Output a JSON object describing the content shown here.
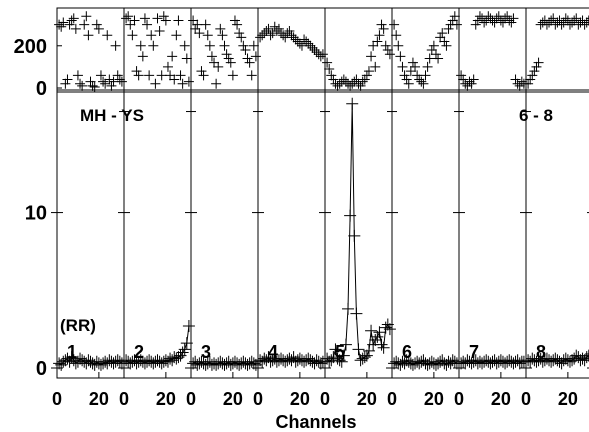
{
  "chart_data": {
    "type": "scatter",
    "title_left": "MH - YS",
    "title_right": "6 - 8",
    "xlabel": "Channels",
    "unit_label": "(RR)",
    "top_panel": {
      "ylim": [
        0,
        360
      ],
      "ytick_values": [
        0,
        200
      ],
      "ytick_labels": [
        "0",
        "200"
      ]
    },
    "main_panel": {
      "ylim": [
        0,
        17.5
      ],
      "ytick_values": [
        0,
        10
      ],
      "ytick_labels": [
        "0",
        "10"
      ]
    },
    "xlim": [
      0,
      32
    ],
    "xtick_values": [
      0,
      20
    ],
    "xtick_labels": [
      "0",
      "20"
    ],
    "grid": false,
    "legend": "none",
    "series": [
      {
        "label": "1",
        "x": [
          1,
          2,
          3,
          4,
          5,
          6,
          7,
          8,
          9,
          10,
          11,
          12,
          13,
          14,
          15,
          16,
          17,
          18,
          19,
          20,
          21,
          22,
          23,
          24,
          25,
          26,
          27,
          28,
          29,
          30,
          31
        ],
        "y": [
          0.3,
          0.2,
          0.4,
          0.5,
          0.6,
          0.4,
          0.7,
          0.5,
          0.3,
          0.4,
          0.6,
          0.5,
          0.4,
          0.3,
          0.5,
          0.4,
          0.3,
          0.2,
          0.4,
          0.3,
          0.2,
          0.3,
          0.4,
          0.3,
          0.5,
          0.4,
          0.3,
          0.4,
          0.5,
          0.4,
          0.3
        ],
        "top_x": [
          1,
          2,
          3,
          4,
          5,
          6,
          7,
          8,
          9,
          10,
          11,
          12,
          13,
          14,
          15,
          16,
          17,
          18,
          19,
          20,
          21,
          22,
          23,
          24,
          25,
          26,
          27,
          28,
          29,
          30,
          31
        ],
        "top_y": [
          300,
          290,
          310,
          20,
          40,
          300,
          320,
          330,
          280,
          60,
          20,
          10,
          300,
          340,
          250,
          30,
          10,
          5,
          300,
          280,
          60,
          30,
          20,
          250,
          40,
          10,
          30,
          200,
          60,
          40,
          30
        ]
      },
      {
        "label": "2",
        "x": [
          1,
          2,
          3,
          4,
          5,
          6,
          7,
          8,
          9,
          10,
          11,
          12,
          13,
          14,
          15,
          16,
          17,
          18,
          19,
          20,
          21,
          22,
          23,
          24,
          25,
          26,
          27,
          28,
          29,
          30,
          31
        ],
        "y": [
          0.5,
          0.4,
          0.3,
          0.4,
          0.5,
          0.3,
          0.4,
          0.5,
          0.4,
          0.3,
          0.4,
          0.5,
          0.4,
          0.3,
          0.4,
          0.5,
          0.4,
          0.3,
          0.4,
          0.5,
          0.4,
          0.6,
          0.5,
          0.7,
          0.6,
          0.7,
          0.8,
          1.0,
          1.2,
          1.6,
          2.7
        ],
        "top_x": [
          1,
          2,
          3,
          4,
          5,
          6,
          7,
          8,
          9,
          10,
          11,
          12,
          13,
          14,
          15,
          16,
          17,
          18,
          19,
          20,
          21,
          22,
          23,
          24,
          25,
          26,
          27,
          28,
          29,
          30,
          31
        ],
        "top_y": [
          330,
          340,
          300,
          250,
          320,
          80,
          60,
          200,
          150,
          330,
          300,
          60,
          250,
          200,
          20,
          330,
          270,
          60,
          340,
          320,
          100,
          60,
          150,
          40,
          250,
          320,
          60,
          20,
          200,
          140,
          30
        ]
      },
      {
        "label": "3",
        "x": [
          1,
          2,
          3,
          4,
          5,
          6,
          7,
          8,
          9,
          10,
          11,
          12,
          13,
          14,
          15,
          16,
          17,
          18,
          19,
          20,
          21,
          22,
          23,
          24,
          25,
          26,
          27,
          28,
          29,
          30,
          31
        ],
        "y": [
          0.3,
          0.4,
          0.2,
          0.3,
          0.4,
          0.3,
          0.2,
          0.3,
          0.4,
          0.2,
          0.3,
          0.2,
          0.3,
          0.4,
          0.3,
          0.2,
          0.3,
          0.4,
          0.2,
          0.3,
          0.4,
          0.3,
          0.2,
          0.3,
          0.4,
          0.3,
          0.2,
          0.3,
          0.4,
          0.3,
          0.2
        ],
        "top_x": [
          1,
          2,
          3,
          4,
          5,
          6,
          7,
          8,
          9,
          10,
          11,
          12,
          13,
          14,
          15,
          16,
          17,
          18,
          19,
          20,
          21,
          22,
          23,
          24,
          25,
          26,
          27,
          28,
          29,
          30,
          31
        ],
        "top_y": [
          320,
          280,
          300,
          260,
          80,
          60,
          300,
          250,
          200,
          150,
          120,
          20,
          100,
          280,
          250,
          200,
          160,
          140,
          120,
          60,
          320,
          300,
          260,
          240,
          200,
          180,
          140,
          120,
          60,
          200,
          150
        ]
      },
      {
        "label": "4",
        "x": [
          1,
          2,
          3,
          4,
          5,
          6,
          7,
          8,
          9,
          10,
          11,
          12,
          13,
          14,
          15,
          16,
          17,
          18,
          19,
          20,
          21,
          22,
          23,
          24,
          25,
          26,
          27,
          28,
          29,
          30,
          31
        ],
        "y": [
          0.5,
          0.4,
          0.6,
          0.5,
          0.7,
          0.4,
          0.5,
          0.6,
          0.4,
          0.5,
          0.6,
          0.5,
          0.4,
          0.5,
          0.6,
          0.5,
          0.7,
          0.4,
          0.5,
          0.6,
          0.5,
          0.4,
          0.5,
          0.6,
          0.5,
          0.4,
          0.3,
          0.5,
          0.4,
          0.3,
          0.4
        ],
        "top_x": [
          1,
          2,
          3,
          4,
          5,
          6,
          7,
          8,
          9,
          10,
          11,
          12,
          13,
          14,
          15,
          16,
          17,
          18,
          19,
          20,
          21,
          22,
          23,
          24,
          25,
          26,
          27,
          28,
          29,
          30,
          31
        ],
        "top_y": [
          240,
          250,
          260,
          270,
          280,
          250,
          260,
          290,
          270,
          280,
          260,
          250,
          240,
          260,
          270,
          250,
          240,
          230,
          220,
          210,
          200,
          230,
          220,
          210,
          200,
          190,
          180,
          170,
          160,
          150,
          160
        ]
      },
      {
        "label": "5",
        "x": [
          1,
          2,
          3,
          4,
          5,
          6,
          7,
          8,
          9,
          10,
          11,
          12,
          13,
          14,
          15,
          16,
          17,
          18,
          19,
          20,
          21,
          22,
          23,
          24,
          25,
          26,
          27,
          28,
          29,
          30,
          31
        ],
        "y": [
          0.6,
          0.4,
          0.5,
          0.7,
          1.2,
          0.6,
          0.5,
          0.4,
          0.8,
          1.5,
          3.8,
          9.8,
          17.0,
          8.5,
          3.5,
          1.2,
          0.5,
          0.6,
          0.7,
          0.8,
          1.1,
          2.4,
          1.5,
          1.8,
          2.0,
          2.3,
          1.5,
          1.3,
          2.6,
          2.8,
          2.5
        ],
        "top_x": [
          1,
          2,
          3,
          4,
          5,
          6,
          7,
          8,
          9,
          10,
          11,
          12,
          13,
          14,
          15,
          16,
          17,
          18,
          19,
          20,
          21,
          22,
          23,
          24,
          25,
          26,
          27,
          28,
          29,
          30,
          31
        ],
        "top_y": [
          120,
          90,
          60,
          40,
          20,
          10,
          20,
          30,
          40,
          30,
          20,
          10,
          20,
          30,
          40,
          20,
          10,
          30,
          40,
          60,
          80,
          150,
          200,
          100,
          220,
          250,
          300,
          280,
          200,
          180,
          160
        ]
      },
      {
        "label": "6",
        "x": [
          1,
          2,
          3,
          4,
          5,
          6,
          7,
          8,
          9,
          10,
          11,
          12,
          13,
          14,
          15,
          16,
          17,
          18,
          19,
          20,
          21,
          22,
          23,
          24,
          25,
          26,
          27,
          28,
          29,
          30,
          31
        ],
        "y": [
          0.3,
          0.4,
          0.3,
          0.2,
          0.4,
          0.3,
          0.5,
          0.4,
          0.3,
          0.2,
          0.3,
          0.4,
          0.3,
          0.4,
          0.5,
          0.3,
          0.2,
          0.3,
          0.4,
          0.3,
          0.2,
          0.3,
          0.4,
          0.5,
          0.3,
          0.2,
          0.4,
          0.3,
          0.5,
          0.4,
          0.3
        ],
        "top_x": [
          1,
          2,
          3,
          4,
          5,
          6,
          7,
          8,
          9,
          10,
          11,
          12,
          13,
          14,
          15,
          16,
          17,
          18,
          19,
          20,
          21,
          22,
          23,
          24,
          25,
          26,
          27,
          28,
          29,
          30,
          31
        ],
        "top_y": [
          300,
          250,
          200,
          150,
          100,
          60,
          40,
          20,
          80,
          120,
          100,
          60,
          40,
          30,
          20,
          60,
          100,
          140,
          180,
          200,
          160,
          140,
          240,
          260,
          220,
          200,
          280,
          300,
          320,
          340,
          300
        ]
      },
      {
        "label": "7",
        "x": [
          1,
          2,
          3,
          4,
          5,
          6,
          7,
          8,
          9,
          10,
          11,
          12,
          13,
          14,
          15,
          16,
          17,
          18,
          19,
          20,
          21,
          22,
          23,
          24,
          25,
          26,
          27,
          28,
          29,
          30,
          31
        ],
        "y": [
          0.3,
          0.4,
          0.3,
          0.5,
          0.4,
          0.3,
          0.4,
          0.5,
          0.3,
          0.4,
          0.3,
          0.4,
          0.5,
          0.4,
          0.3,
          0.4,
          0.5,
          0.3,
          0.4,
          0.5,
          0.4,
          0.3,
          0.4,
          0.5,
          0.4,
          0.3,
          0.4,
          0.5,
          0.3,
          0.4,
          0.4
        ],
        "top_x": [
          1,
          2,
          3,
          4,
          5,
          6,
          7,
          8,
          9,
          10,
          11,
          12,
          13,
          14,
          15,
          16,
          17,
          18,
          19,
          20,
          21,
          22,
          23,
          24,
          25,
          26,
          27,
          28,
          29,
          30,
          31
        ],
        "top_y": [
          60,
          40,
          20,
          10,
          30,
          20,
          40,
          300,
          320,
          340,
          330,
          310,
          320,
          340,
          330,
          320,
          310,
          330,
          340,
          320,
          310,
          330,
          340,
          320,
          310,
          330,
          40,
          20,
          10,
          30,
          20
        ]
      },
      {
        "label": "8",
        "x": [
          1,
          2,
          3,
          4,
          5,
          6,
          7,
          8,
          9,
          10,
          11,
          12,
          13,
          14,
          15,
          16,
          17,
          18,
          19,
          20,
          21,
          22,
          23,
          24,
          25,
          26,
          27,
          28,
          29,
          30,
          31
        ],
        "y": [
          0.5,
          0.4,
          0.6,
          0.5,
          0.4,
          0.5,
          0.6,
          0.4,
          0.5,
          0.6,
          0.5,
          0.4,
          0.5,
          0.6,
          0.5,
          0.4,
          0.3,
          0.5,
          0.6,
          0.5,
          0.4,
          0.5,
          0.6,
          0.8,
          0.7,
          0.5,
          0.6,
          0.5,
          0.7,
          0.8,
          0.9
        ],
        "top_x": [
          1,
          2,
          3,
          4,
          5,
          6,
          7,
          8,
          9,
          10,
          11,
          12,
          13,
          14,
          15,
          16,
          17,
          18,
          19,
          20,
          21,
          22,
          23,
          24,
          25,
          26,
          27,
          28,
          29,
          30,
          31
        ],
        "top_y": [
          20,
          40,
          60,
          80,
          100,
          120,
          300,
          310,
          320,
          300,
          310,
          320,
          330,
          300,
          310,
          320,
          300,
          310,
          330,
          320,
          300,
          310,
          320,
          330,
          300,
          310,
          320,
          300,
          310,
          320,
          330
        ]
      }
    ]
  }
}
